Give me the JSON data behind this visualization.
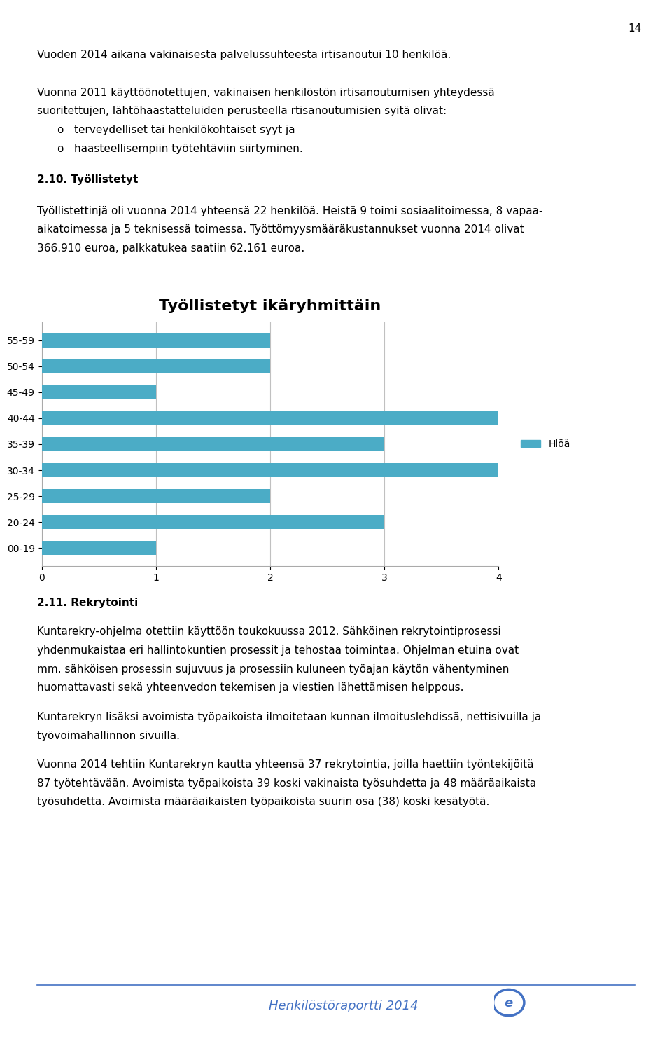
{
  "title": "Työllistetyt ikäryhmittäin",
  "categories_top_to_bottom": [
    "55-59",
    "50-54",
    "45-49",
    "40-44",
    "35-39",
    "30-34",
    "25-29",
    "20-24",
    "00-19"
  ],
  "values_top_to_bottom": [
    2,
    2,
    1,
    4,
    3,
    4,
    2,
    3,
    1
  ],
  "bar_color": "#4BACC6",
  "legend_label": "Hlöä",
  "xlim": [
    0,
    4
  ],
  "xticks": [
    0,
    1,
    2,
    3,
    4
  ],
  "title_fontsize": 16,
  "tick_fontsize": 10,
  "legend_fontsize": 10,
  "page_number": "14",
  "footer_color": "#4472C4",
  "chart_border_color": "#AAAAAA",
  "gridline_color": "#C0C0C0",
  "background_color": "#FFFFFF",
  "text_color": "#000000",
  "body_fontsize": 11,
  "heading_fontsize": 11,
  "para1": "Vuoden 2014 aikana vakinaisesta palvelussuhteesta irtisanoutui 10 henkilöä.",
  "para2_line1": "Vuonna 2011 käyttöönotettujen, vakinaisen henkilöstön irtisanoutumisen yhteydessä",
  "para2_line2": "suoritettujen, lähtöhaastatteluiden perusteella rtisanoutumisien syitä olivat:",
  "bullet1": "terveydelliset tai henkilökohtaiset syyt ja",
  "bullet2": "haasteellisempiin työtehtäviin siirtyminen.",
  "heading210": "2.10. Työllistetyt",
  "para3_line1": "Työllistettinjä oli vuonna 2014 yhteensä 22 henkilöä. Heistä 9 toimi sosiaalitoimessa, 8 vapaa-",
  "para3_line2": "aikatoimessa ja 5 teknisessä toimessa. Työttömyysmääräkustannukset vuonna 2014 olivat",
  "para3_line3": "366.910 euroa, palkkatukea saatiin 62.161 euroa.",
  "heading211": "2.11. Rekrytointi",
  "para4_line1": "Kuntarekry-ohjelma otettiin käyttöön toukokuussa 2012. Sähköinen rekrytointiprosessi",
  "para4_line2": "yhdenmukaistaa eri hallintokuntien prosessit ja tehostaa toimintaa. Ohjelman etuina ovat",
  "para4_line3": "mm. sähköisen prosessin sujuvuus ja prosessiin kuluneen työajan käytön vähentyminen",
  "para4_line4": "huomattavasti sekä yhteenvedon tekemisen ja viestien lähettämisen helppous.",
  "para5_line1": "Kuntarekryn lisäksi avoimista työpaikoista ilmoitetaan kunnan ilmoituslehdissä, nettisivuilla ja",
  "para5_line2": "työvoimahallinnon sivuilla.",
  "para6_line1": "Vuonna 2014 tehtiin Kuntarekryn kautta yhteensä 37 rekrytointia, joilla haettiin työntekijöitä",
  "para6_line2": "87 työtehtävään. Avoimista työpaikoista 39 koski vakinaista työsuhdetta ja 48 määräaikaista",
  "para6_line3": "työsuhdetta. Avoimista määräaikaisten työpaikoista suurin osa (38) koski kesätyötä.",
  "footer_text": "Henkilöstöraportti 2014"
}
